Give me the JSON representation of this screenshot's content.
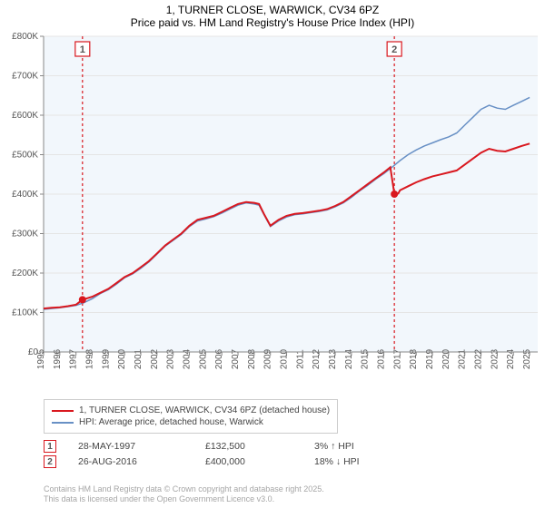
{
  "title_line1": "1, TURNER CLOSE, WARWICK, CV34 6PZ",
  "title_line2": "Price paid vs. HM Land Registry's House Price Index (HPI)",
  "chart": {
    "type": "line",
    "plot_bg": "#f2f7fc",
    "grid_color": "#e5e5e5",
    "axis_color": "#888888",
    "label_color": "#555555",
    "label_fontsize": 10,
    "x_min": 1995,
    "x_max": 2025.5,
    "y_min": 0,
    "y_max": 800,
    "y_ticks": [
      0,
      100,
      200,
      300,
      400,
      500,
      600,
      700,
      800
    ],
    "y_tick_labels": [
      "£0",
      "£100K",
      "£200K",
      "£300K",
      "£400K",
      "£500K",
      "£600K",
      "£700K",
      "£800K"
    ],
    "x_ticks": [
      1995,
      1996,
      1997,
      1998,
      1999,
      2000,
      2001,
      2002,
      2003,
      2004,
      2005,
      2006,
      2007,
      2008,
      2009,
      2010,
      2011,
      2012,
      2013,
      2014,
      2015,
      2016,
      2017,
      2018,
      2019,
      2020,
      2021,
      2022,
      2023,
      2024,
      2025
    ],
    "series": [
      {
        "name": "1, TURNER CLOSE, WARWICK, CV34 6PZ (detached house)",
        "color": "#d9181f",
        "width": 2,
        "data": [
          [
            1995,
            110
          ],
          [
            1995.5,
            112
          ],
          [
            1996,
            113
          ],
          [
            1996.5,
            116
          ],
          [
            1997,
            120
          ],
          [
            1997.4,
            132.5
          ],
          [
            1998,
            140
          ],
          [
            1998.5,
            150
          ],
          [
            1999,
            160
          ],
          [
            1999.5,
            175
          ],
          [
            2000,
            190
          ],
          [
            2000.5,
            200
          ],
          [
            2001,
            215
          ],
          [
            2001.5,
            230
          ],
          [
            2002,
            250
          ],
          [
            2002.5,
            270
          ],
          [
            2003,
            285
          ],
          [
            2003.5,
            300
          ],
          [
            2004,
            320
          ],
          [
            2004.5,
            335
          ],
          [
            2005,
            340
          ],
          [
            2005.5,
            345
          ],
          [
            2006,
            355
          ],
          [
            2006.5,
            365
          ],
          [
            2007,
            375
          ],
          [
            2007.5,
            380
          ],
          [
            2008,
            378
          ],
          [
            2008.3,
            375
          ],
          [
            2008.6,
            350
          ],
          [
            2009,
            320
          ],
          [
            2009.5,
            335
          ],
          [
            2010,
            345
          ],
          [
            2010.5,
            350
          ],
          [
            2011,
            352
          ],
          [
            2011.5,
            355
          ],
          [
            2012,
            358
          ],
          [
            2012.5,
            362
          ],
          [
            2013,
            370
          ],
          [
            2013.5,
            380
          ],
          [
            2014,
            395
          ],
          [
            2014.5,
            410
          ],
          [
            2015,
            425
          ],
          [
            2015.5,
            440
          ],
          [
            2016,
            455
          ],
          [
            2016.4,
            468
          ],
          [
            2016.65,
            400
          ],
          [
            2016.7,
            396
          ],
          [
            2016.9,
            402
          ],
          [
            2017,
            410
          ],
          [
            2017.5,
            420
          ],
          [
            2018,
            430
          ],
          [
            2018.5,
            438
          ],
          [
            2019,
            445
          ],
          [
            2019.5,
            450
          ],
          [
            2020,
            455
          ],
          [
            2020.5,
            460
          ],
          [
            2021,
            475
          ],
          [
            2021.5,
            490
          ],
          [
            2022,
            505
          ],
          [
            2022.5,
            515
          ],
          [
            2023,
            510
          ],
          [
            2023.5,
            508
          ],
          [
            2024,
            515
          ],
          [
            2024.5,
            522
          ],
          [
            2025,
            528
          ]
        ]
      },
      {
        "name": "HPI: Average price, detached house, Warwick",
        "color": "#6890c5",
        "width": 1.5,
        "data": [
          [
            1995,
            108
          ],
          [
            1995.5,
            110
          ],
          [
            1996,
            112
          ],
          [
            1996.5,
            115
          ],
          [
            1997,
            118
          ],
          [
            1997.5,
            125
          ],
          [
            1998,
            135
          ],
          [
            1998.5,
            148
          ],
          [
            1999,
            158
          ],
          [
            1999.5,
            172
          ],
          [
            2000,
            188
          ],
          [
            2000.5,
            198
          ],
          [
            2001,
            212
          ],
          [
            2001.5,
            228
          ],
          [
            2002,
            248
          ],
          [
            2002.5,
            268
          ],
          [
            2003,
            283
          ],
          [
            2003.5,
            298
          ],
          [
            2004,
            318
          ],
          [
            2004.5,
            332
          ],
          [
            2005,
            337
          ],
          [
            2005.5,
            343
          ],
          [
            2006,
            352
          ],
          [
            2006.5,
            362
          ],
          [
            2007,
            372
          ],
          [
            2007.5,
            378
          ],
          [
            2008,
            375
          ],
          [
            2008.3,
            372
          ],
          [
            2008.6,
            348
          ],
          [
            2009,
            318
          ],
          [
            2009.5,
            332
          ],
          [
            2010,
            342
          ],
          [
            2010.5,
            348
          ],
          [
            2011,
            350
          ],
          [
            2011.5,
            353
          ],
          [
            2012,
            356
          ],
          [
            2012.5,
            360
          ],
          [
            2013,
            368
          ],
          [
            2013.5,
            378
          ],
          [
            2014,
            392
          ],
          [
            2014.5,
            408
          ],
          [
            2015,
            422
          ],
          [
            2015.5,
            438
          ],
          [
            2016,
            452
          ],
          [
            2016.5,
            468
          ],
          [
            2017,
            485
          ],
          [
            2017.5,
            500
          ],
          [
            2018,
            512
          ],
          [
            2018.5,
            522
          ],
          [
            2019,
            530
          ],
          [
            2019.5,
            538
          ],
          [
            2020,
            545
          ],
          [
            2020.5,
            555
          ],
          [
            2021,
            575
          ],
          [
            2021.5,
            595
          ],
          [
            2022,
            615
          ],
          [
            2022.5,
            625
          ],
          [
            2023,
            618
          ],
          [
            2023.5,
            615
          ],
          [
            2024,
            625
          ],
          [
            2024.5,
            635
          ],
          [
            2025,
            645
          ]
        ]
      }
    ],
    "markers": [
      {
        "n": "1",
        "x": 1997.4,
        "color": "#d9181f",
        "point_y": 132.5
      },
      {
        "n": "2",
        "x": 2016.65,
        "color": "#d9181f",
        "point_y": 400
      }
    ]
  },
  "legend": [
    {
      "color": "#d9181f",
      "text": "1, TURNER CLOSE, WARWICK, CV34 6PZ (detached house)"
    },
    {
      "color": "#6890c5",
      "text": "HPI: Average price, detached house, Warwick"
    }
  ],
  "transactions": [
    {
      "n": "1",
      "color": "#d9181f",
      "date": "28-MAY-1997",
      "price": "£132,500",
      "diff": "3% ↑ HPI"
    },
    {
      "n": "2",
      "color": "#d9181f",
      "date": "26-AUG-2016",
      "price": "£400,000",
      "diff": "18% ↓ HPI"
    }
  ],
  "footer_line1": "Contains HM Land Registry data © Crown copyright and database right 2025.",
  "footer_line2": "This data is licensed under the Open Government Licence v3.0."
}
